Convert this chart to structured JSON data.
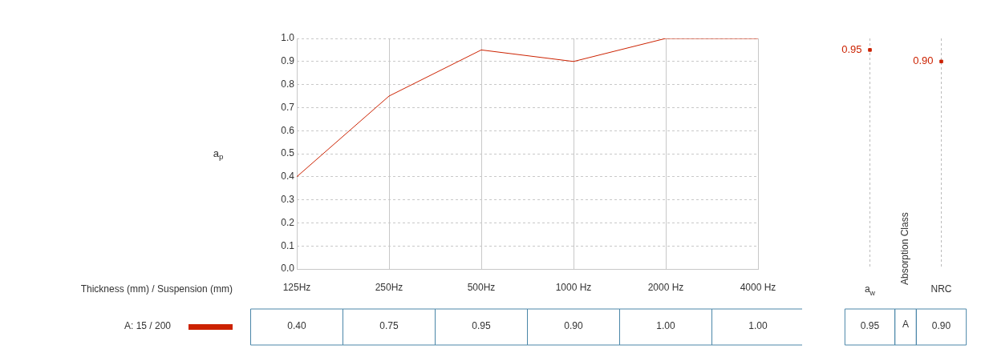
{
  "chart_data": [
    {
      "type": "line",
      "xlabel": "Thickness (mm) / Suspension (mm)",
      "ylabel": "a$_{p}$",
      "categories": [
        "125Hz",
        "250Hz",
        "500Hz",
        "1000 Hz",
        "2000 Hz",
        "4000 Hz"
      ],
      "series": [
        {
          "name": "A: 15 / 200",
          "color": "#cc2200",
          "values": [
            0.4,
            0.75,
            0.95,
            0.9,
            1.0,
            1.0
          ],
          "value_labels": [
            "0.40",
            "0.75",
            "0.95",
            "0.90",
            "1.00",
            "1.00"
          ]
        }
      ],
      "ylim": [
        0,
        1
      ],
      "yticks": [
        {
          "value": 0,
          "label": "0.0"
        },
        0.1,
        0.2,
        0.3,
        0.4,
        0.5,
        0.6,
        0.7,
        0.8,
        0.9,
        {
          "value": 1,
          "label": "1.0"
        }
      ],
      "grid": true,
      "legend": "bottom left",
      "marker": "none",
      "line_style": "solid"
    },
    {
      "type": "scatter",
      "categories": [
        "a$_{w}$",
        "NRC"
      ],
      "series": [
        {
          "color": "#cc2200",
          "values": [
            0.95,
            0.9
          ],
          "value_labels": [
            "0.95",
            "0.90"
          ]
        }
      ],
      "ylim": [
        0,
        1
      ],
      "tick_labels": "x",
      "grid": "x",
      "marker": "square",
      "annotations": [
        "Absorption Class",
        "A"
      ]
    }
  ]
}
